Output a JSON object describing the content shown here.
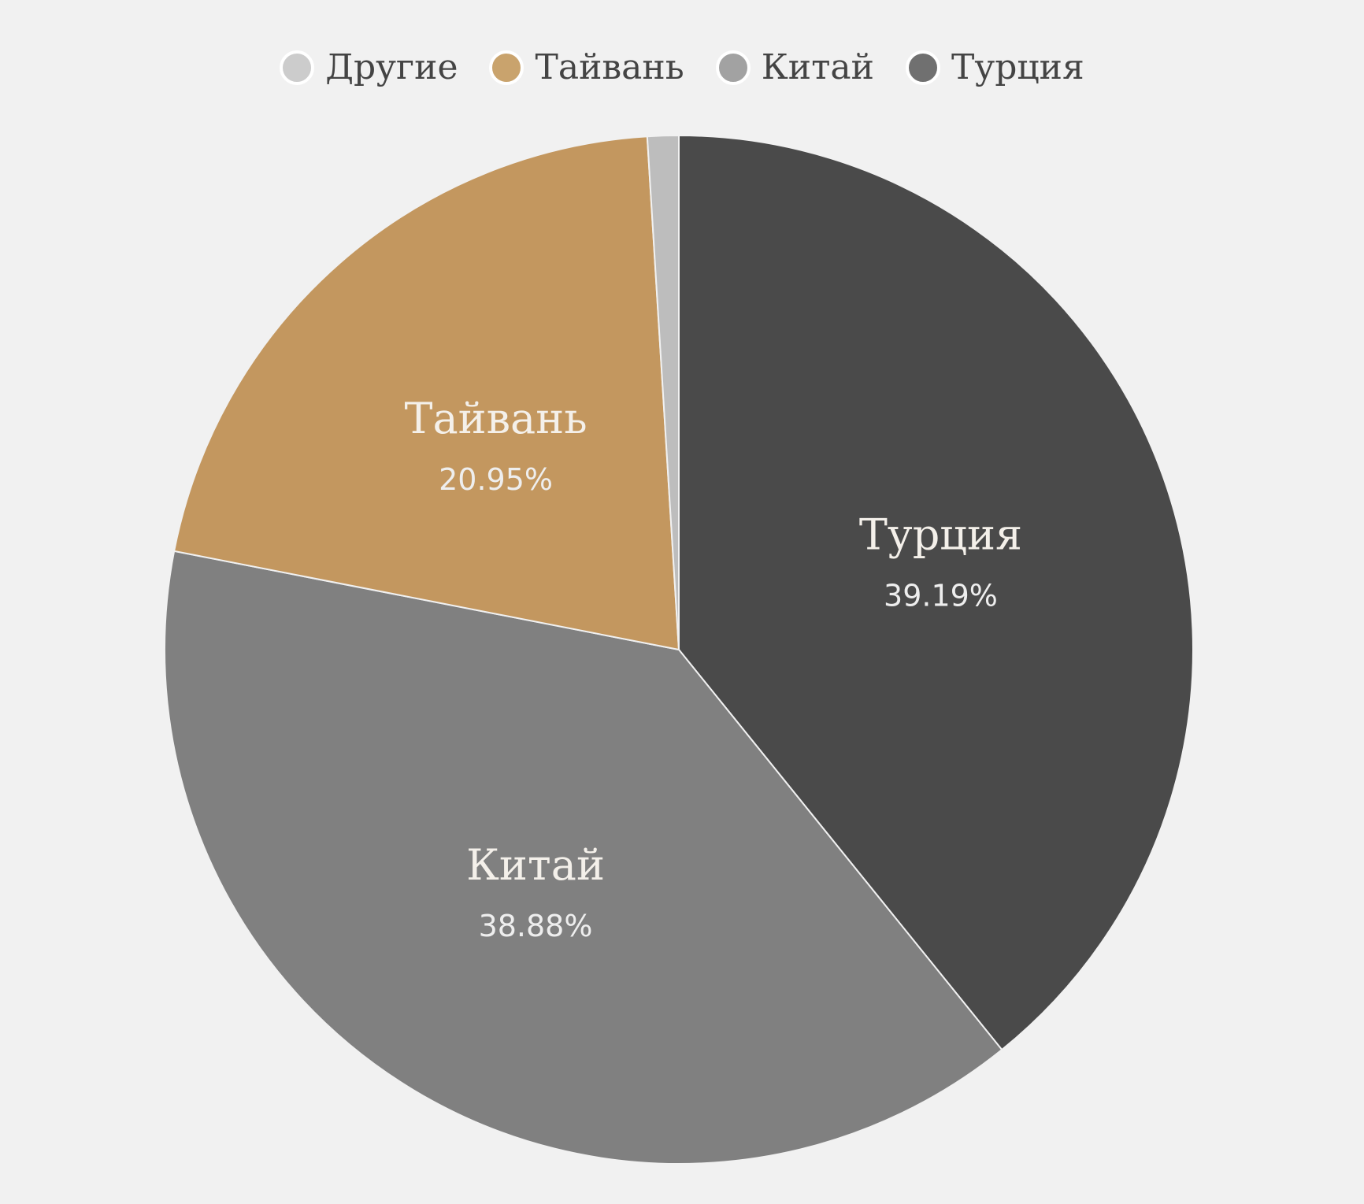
{
  "chart_data": {
    "type": "pie",
    "title": "",
    "legend_position": "top",
    "start_angle": "top, clockwise",
    "slices": [
      {
        "name": "Турция",
        "value": 39.19,
        "label": "39.19%",
        "color": "#4a4a4a",
        "legend_color": "#707070"
      },
      {
        "name": "Китай",
        "value": 38.88,
        "label": "38.88%",
        "color": "#808080",
        "legend_color": "#a2a2a2"
      },
      {
        "name": "Тайвань",
        "value": 20.95,
        "label": "20.95%",
        "color": "#c3975f",
        "legend_color": "#c9a36d"
      },
      {
        "name": "Другие",
        "value": 0.98,
        "label": "",
        "color": "#bdbdbd",
        "legend_color": "#cccccc"
      }
    ],
    "legend_order": [
      "Другие",
      "Тайвань",
      "Китай",
      "Турция"
    ]
  }
}
